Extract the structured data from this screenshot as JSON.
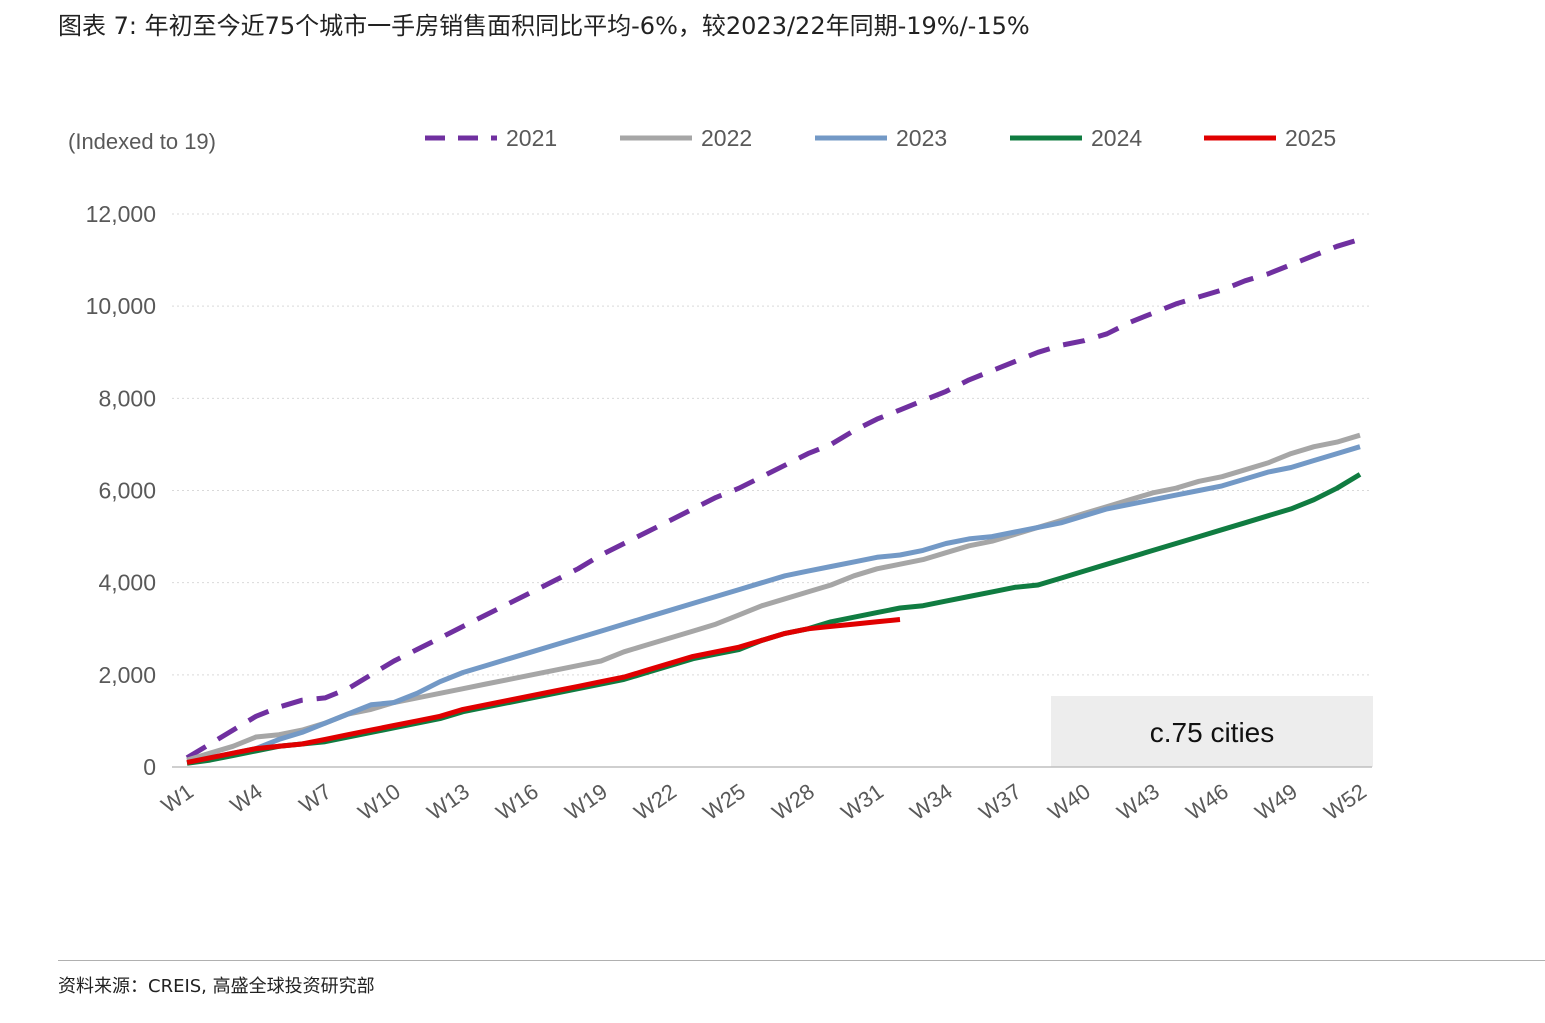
{
  "title": "图表 7: 年初至今近75个城市一手房销售面积同比平均-6%，较2023/22年同期-19%/-15%",
  "source": "资料来源：CREIS, 高盛全球投资研究部",
  "chart_data": {
    "type": "line",
    "ylabel": "(Indexed to 19)",
    "annotation": "c.75 cities",
    "ylim": [
      0,
      12000
    ],
    "yticks": [
      0,
      2000,
      4000,
      6000,
      8000,
      10000,
      12000
    ],
    "ytick_labels": [
      "0",
      "2,000",
      "4,000",
      "6,000",
      "8,000",
      "10,000",
      "12,000"
    ],
    "xlim": [
      1,
      52
    ],
    "xticks": [
      "W1",
      "W4",
      "W7",
      "W10",
      "W13",
      "W16",
      "W19",
      "W22",
      "W25",
      "W28",
      "W31",
      "W34",
      "W37",
      "W40",
      "W43",
      "W46",
      "W49",
      "W52"
    ],
    "grid": "horizontal-dotted",
    "legend_position": "top",
    "series": [
      {
        "name": "2021",
        "color": "#7030A0",
        "dash": true,
        "width": 5,
        "points": [
          [
            1,
            200
          ],
          [
            2,
            500
          ],
          [
            3,
            800
          ],
          [
            4,
            1100
          ],
          [
            5,
            1300
          ],
          [
            6,
            1450
          ],
          [
            7,
            1500
          ],
          [
            8,
            1700
          ],
          [
            9,
            2000
          ],
          [
            10,
            2300
          ],
          [
            11,
            2550
          ],
          [
            12,
            2800
          ],
          [
            13,
            3050
          ],
          [
            14,
            3300
          ],
          [
            15,
            3550
          ],
          [
            16,
            3800
          ],
          [
            17,
            4050
          ],
          [
            18,
            4300
          ],
          [
            19,
            4600
          ],
          [
            20,
            4850
          ],
          [
            21,
            5100
          ],
          [
            22,
            5350
          ],
          [
            23,
            5600
          ],
          [
            24,
            5850
          ],
          [
            25,
            6050
          ],
          [
            26,
            6300
          ],
          [
            27,
            6550
          ],
          [
            28,
            6800
          ],
          [
            29,
            7000
          ],
          [
            30,
            7300
          ],
          [
            31,
            7550
          ],
          [
            32,
            7750
          ],
          [
            33,
            7950
          ],
          [
            34,
            8150
          ],
          [
            35,
            8400
          ],
          [
            36,
            8600
          ],
          [
            37,
            8800
          ],
          [
            38,
            9000
          ],
          [
            39,
            9150
          ],
          [
            40,
            9250
          ],
          [
            41,
            9400
          ],
          [
            42,
            9650
          ],
          [
            43,
            9850
          ],
          [
            44,
            10050
          ],
          [
            45,
            10200
          ],
          [
            46,
            10350
          ],
          [
            47,
            10550
          ],
          [
            48,
            10700
          ],
          [
            49,
            10900
          ],
          [
            50,
            11100
          ],
          [
            51,
            11300
          ],
          [
            52,
            11450
          ]
        ]
      },
      {
        "name": "2022",
        "color": "#A6A6A6",
        "dash": false,
        "width": 5,
        "points": [
          [
            1,
            150
          ],
          [
            2,
            300
          ],
          [
            3,
            450
          ],
          [
            4,
            650
          ],
          [
            5,
            700
          ],
          [
            6,
            800
          ],
          [
            7,
            950
          ],
          [
            8,
            1150
          ],
          [
            9,
            1250
          ],
          [
            10,
            1400
          ],
          [
            11,
            1500
          ],
          [
            12,
            1600
          ],
          [
            13,
            1700
          ],
          [
            14,
            1800
          ],
          [
            15,
            1900
          ],
          [
            16,
            2000
          ],
          [
            17,
            2100
          ],
          [
            18,
            2200
          ],
          [
            19,
            2300
          ],
          [
            20,
            2500
          ],
          [
            21,
            2650
          ],
          [
            22,
            2800
          ],
          [
            23,
            2950
          ],
          [
            24,
            3100
          ],
          [
            25,
            3300
          ],
          [
            26,
            3500
          ],
          [
            27,
            3650
          ],
          [
            28,
            3800
          ],
          [
            29,
            3950
          ],
          [
            30,
            4150
          ],
          [
            31,
            4300
          ],
          [
            32,
            4400
          ],
          [
            33,
            4500
          ],
          [
            34,
            4650
          ],
          [
            35,
            4800
          ],
          [
            36,
            4900
          ],
          [
            37,
            5050
          ],
          [
            38,
            5200
          ],
          [
            39,
            5350
          ],
          [
            40,
            5500
          ],
          [
            41,
            5650
          ],
          [
            42,
            5800
          ],
          [
            43,
            5950
          ],
          [
            44,
            6050
          ],
          [
            45,
            6200
          ],
          [
            46,
            6300
          ],
          [
            47,
            6450
          ],
          [
            48,
            6600
          ],
          [
            49,
            6800
          ],
          [
            50,
            6950
          ],
          [
            51,
            7050
          ],
          [
            52,
            7200
          ]
        ]
      },
      {
        "name": "2023",
        "color": "#7399C6",
        "dash": false,
        "width": 5,
        "points": [
          [
            1,
            100
          ],
          [
            2,
            200
          ],
          [
            3,
            300
          ],
          [
            4,
            400
          ],
          [
            5,
            600
          ],
          [
            6,
            750
          ],
          [
            7,
            950
          ],
          [
            8,
            1150
          ],
          [
            9,
            1350
          ],
          [
            10,
            1400
          ],
          [
            11,
            1600
          ],
          [
            12,
            1850
          ],
          [
            13,
            2050
          ],
          [
            14,
            2200
          ],
          [
            15,
            2350
          ],
          [
            16,
            2500
          ],
          [
            17,
            2650
          ],
          [
            18,
            2800
          ],
          [
            19,
            2950
          ],
          [
            20,
            3100
          ],
          [
            21,
            3250
          ],
          [
            22,
            3400
          ],
          [
            23,
            3550
          ],
          [
            24,
            3700
          ],
          [
            25,
            3850
          ],
          [
            26,
            4000
          ],
          [
            27,
            4150
          ],
          [
            28,
            4250
          ],
          [
            29,
            4350
          ],
          [
            30,
            4450
          ],
          [
            31,
            4550
          ],
          [
            32,
            4600
          ],
          [
            33,
            4700
          ],
          [
            34,
            4850
          ],
          [
            35,
            4950
          ],
          [
            36,
            5000
          ],
          [
            37,
            5100
          ],
          [
            38,
            5200
          ],
          [
            39,
            5300
          ],
          [
            40,
            5450
          ],
          [
            41,
            5600
          ],
          [
            42,
            5700
          ],
          [
            43,
            5800
          ],
          [
            44,
            5900
          ],
          [
            45,
            6000
          ],
          [
            46,
            6100
          ],
          [
            47,
            6250
          ],
          [
            48,
            6400
          ],
          [
            49,
            6500
          ],
          [
            50,
            6650
          ],
          [
            51,
            6800
          ],
          [
            52,
            6950
          ]
        ]
      },
      {
        "name": "2024",
        "color": "#107C41",
        "dash": false,
        "width": 5,
        "points": [
          [
            1,
            80
          ],
          [
            2,
            150
          ],
          [
            3,
            250
          ],
          [
            4,
            350
          ],
          [
            5,
            450
          ],
          [
            6,
            500
          ],
          [
            7,
            550
          ],
          [
            8,
            650
          ],
          [
            9,
            750
          ],
          [
            10,
            850
          ],
          [
            11,
            950
          ],
          [
            12,
            1050
          ],
          [
            13,
            1200
          ],
          [
            14,
            1300
          ],
          [
            15,
            1400
          ],
          [
            16,
            1500
          ],
          [
            17,
            1600
          ],
          [
            18,
            1700
          ],
          [
            19,
            1800
          ],
          [
            20,
            1900
          ],
          [
            21,
            2050
          ],
          [
            22,
            2200
          ],
          [
            23,
            2350
          ],
          [
            24,
            2450
          ],
          [
            25,
            2550
          ],
          [
            26,
            2750
          ],
          [
            27,
            2900
          ],
          [
            28,
            3000
          ],
          [
            29,
            3150
          ],
          [
            30,
            3250
          ],
          [
            31,
            3350
          ],
          [
            32,
            3450
          ],
          [
            33,
            3500
          ],
          [
            34,
            3600
          ],
          [
            35,
            3700
          ],
          [
            36,
            3800
          ],
          [
            37,
            3900
          ],
          [
            38,
            3950
          ],
          [
            39,
            4100
          ],
          [
            40,
            4250
          ],
          [
            41,
            4400
          ],
          [
            42,
            4550
          ],
          [
            43,
            4700
          ],
          [
            44,
            4850
          ],
          [
            45,
            5000
          ],
          [
            46,
            5150
          ],
          [
            47,
            5300
          ],
          [
            48,
            5450
          ],
          [
            49,
            5600
          ],
          [
            50,
            5800
          ],
          [
            51,
            6050
          ],
          [
            52,
            6350
          ]
        ]
      },
      {
        "name": "2025",
        "color": "#E00000",
        "dash": false,
        "width": 5,
        "points": [
          [
            1,
            100
          ],
          [
            2,
            200
          ],
          [
            3,
            300
          ],
          [
            4,
            400
          ],
          [
            5,
            450
          ],
          [
            6,
            500
          ],
          [
            7,
            600
          ],
          [
            8,
            700
          ],
          [
            9,
            800
          ],
          [
            10,
            900
          ],
          [
            11,
            1000
          ],
          [
            12,
            1100
          ],
          [
            13,
            1250
          ],
          [
            14,
            1350
          ],
          [
            15,
            1450
          ],
          [
            16,
            1550
          ],
          [
            17,
            1650
          ],
          [
            18,
            1750
          ],
          [
            19,
            1850
          ],
          [
            20,
            1950
          ],
          [
            21,
            2100
          ],
          [
            22,
            2250
          ],
          [
            23,
            2400
          ],
          [
            24,
            2500
          ],
          [
            25,
            2600
          ],
          [
            26,
            2750
          ],
          [
            27,
            2900
          ],
          [
            28,
            3000
          ],
          [
            29,
            3050
          ],
          [
            30,
            3100
          ],
          [
            31,
            3150
          ],
          [
            32,
            3200
          ]
        ]
      }
    ]
  }
}
